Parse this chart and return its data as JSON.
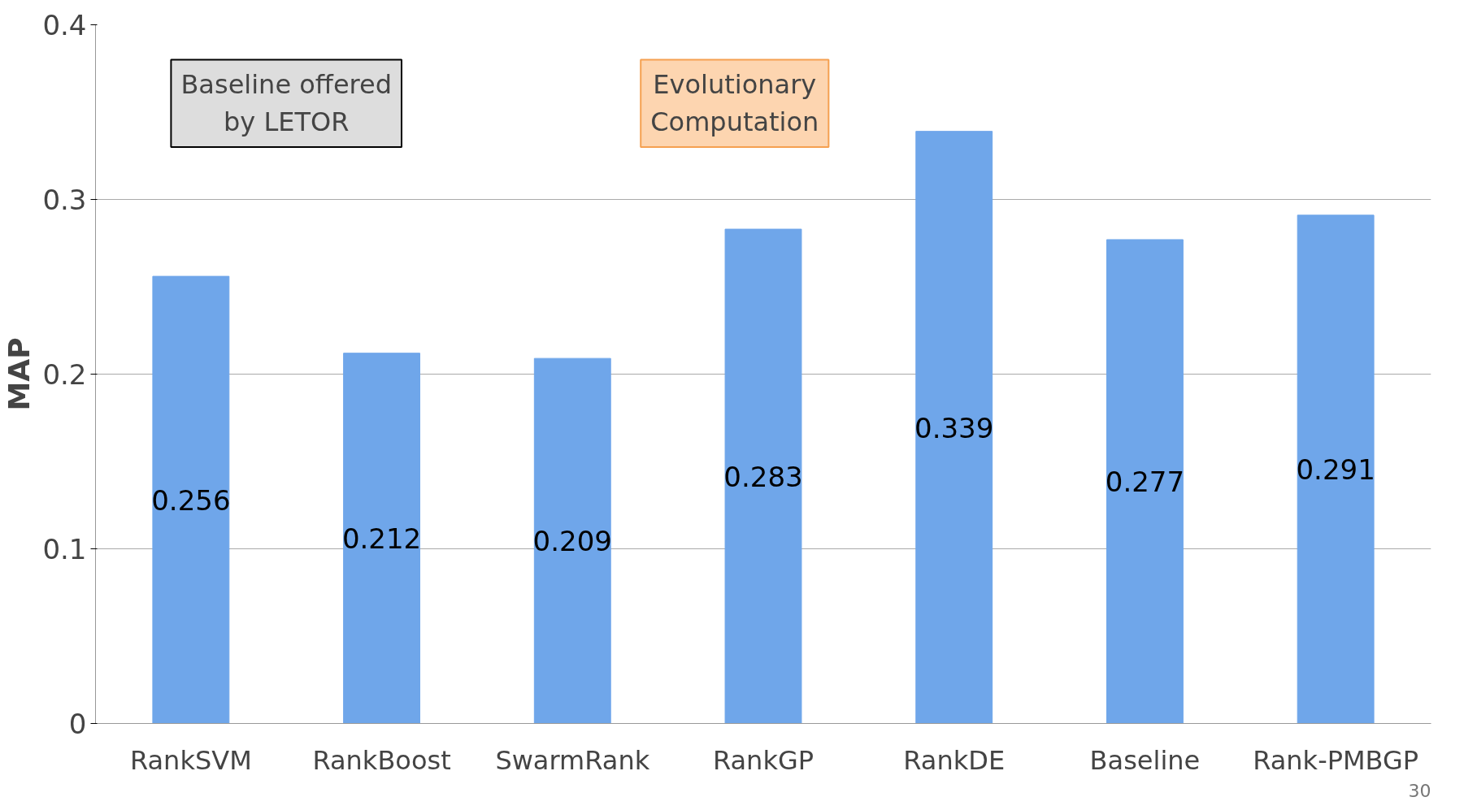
{
  "chart_data": {
    "type": "bar",
    "ylabel": "MAP",
    "categories": [
      "RankSVM",
      "RankBoost",
      "SwarmRank",
      "RankGP",
      "RankDE",
      "Baseline",
      "Rank-PMBGP"
    ],
    "values": [
      0.256,
      0.212,
      0.209,
      0.283,
      0.339,
      0.277,
      0.291
    ],
    "color": "#6fa6ea",
    "ylim": [
      0,
      0.4
    ],
    "yticks": [
      0,
      0.1,
      0.2,
      0.3,
      0.4
    ],
    "grid": "y",
    "data_labels": true,
    "annotations": [
      "Baseline offered\nby LETOR",
      "Evolutionary\nComputation",
      "30"
    ]
  }
}
